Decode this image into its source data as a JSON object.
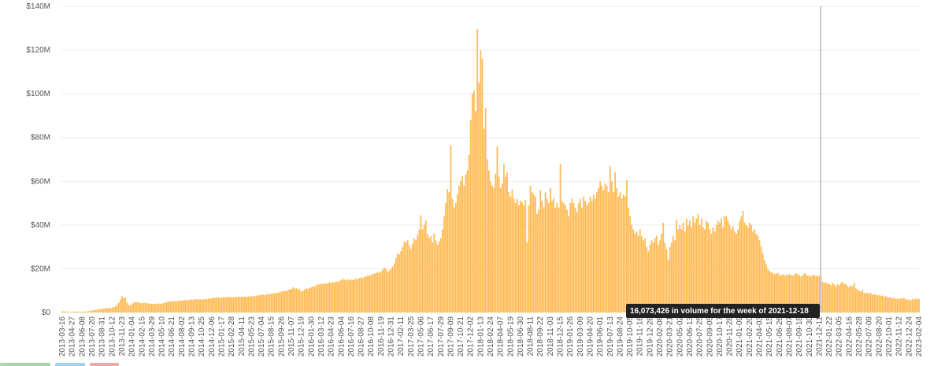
{
  "chart_data": {
    "type": "bar",
    "color": "#ffbb55",
    "ylim": [
      0,
      140
    ],
    "yticks": [
      {
        "value": 0,
        "label": "$0"
      },
      {
        "value": 20,
        "label": "$20M"
      },
      {
        "value": 40,
        "label": "$40M"
      },
      {
        "value": 60,
        "label": "$60M"
      },
      {
        "value": 80,
        "label": "$80M"
      },
      {
        "value": 100,
        "label": "$100M"
      },
      {
        "value": 120,
        "label": "$120M"
      },
      {
        "value": 140,
        "label": "$140M"
      }
    ],
    "grid": true,
    "annotation": "16,073,426 in volume for the week of 2021-12-18",
    "categories": [
      "2013-03-16",
      null,
      null,
      null,
      null,
      null,
      "2013-04-27",
      null,
      null,
      null,
      null,
      null,
      "2013-06-08",
      null,
      null,
      null,
      null,
      null,
      "2013-07-20",
      null,
      null,
      null,
      null,
      null,
      "2013-08-31",
      null,
      null,
      null,
      null,
      null,
      "2013-10-12",
      null,
      null,
      null,
      null,
      null,
      "2013-11-23",
      null,
      null,
      null,
      null,
      null,
      "2014-01-04",
      null,
      null,
      null,
      null,
      null,
      "2014-02-15",
      null,
      null,
      null,
      null,
      null,
      "2014-03-29",
      null,
      null,
      null,
      null,
      null,
      "2014-05-10",
      null,
      null,
      null,
      null,
      null,
      "2014-06-21",
      null,
      null,
      null,
      null,
      null,
      "2014-08-02",
      null,
      null,
      null,
      null,
      null,
      "2014-09-13",
      null,
      null,
      null,
      null,
      null,
      "2014-10-25",
      null,
      null,
      null,
      null,
      null,
      "2014-12-06",
      null,
      null,
      null,
      null,
      null,
      "2015-01-17",
      null,
      null,
      null,
      null,
      null,
      "2015-02-28",
      null,
      null,
      null,
      null,
      null,
      "2015-04-11",
      null,
      null,
      null,
      null,
      null,
      "2015-05-23",
      null,
      null,
      null,
      null,
      null,
      "2015-07-04",
      null,
      null,
      null,
      null,
      null,
      "2015-08-15",
      null,
      null,
      null,
      null,
      null,
      "2015-09-26",
      null,
      null,
      null,
      null,
      null,
      "2015-11-07",
      null,
      null,
      null,
      null,
      null,
      "2015-12-19",
      null,
      null,
      null,
      null,
      null,
      "2016-01-30",
      null,
      null,
      null,
      null,
      null,
      "2016-03-12",
      null,
      null,
      null,
      null,
      null,
      "2016-04-23",
      null,
      null,
      null,
      null,
      null,
      "2016-06-04",
      null,
      null,
      null,
      null,
      null,
      "2016-07-16",
      null,
      null,
      null,
      null,
      null,
      "2016-08-27",
      null,
      null,
      null,
      null,
      null,
      "2016-10-08",
      null,
      null,
      null,
      null,
      null,
      "2016-11-19",
      null,
      null,
      null,
      null,
      null,
      "2016-12-31",
      null,
      null,
      null,
      null,
      null,
      "2017-02-11",
      null,
      null,
      null,
      null,
      null,
      "2017-03-25",
      null,
      null,
      null,
      null,
      null,
      "2017-05-06",
      null,
      null,
      null,
      null,
      null,
      "2017-06-17",
      null,
      null,
      null,
      null,
      null,
      "2017-07-29",
      null,
      null,
      null,
      null,
      null,
      "2017-09-09",
      null,
      null,
      null,
      null,
      null,
      "2017-10-21",
      null,
      null,
      null,
      null,
      null,
      "2017-12-02",
      null,
      null,
      null,
      null,
      null,
      "2018-01-13",
      null,
      null,
      null,
      null,
      null,
      "2018-02-24",
      null,
      null,
      null,
      null,
      null,
      "2018-04-07",
      null,
      null,
      null,
      null,
      null,
      "2018-05-19",
      null,
      null,
      null,
      null,
      null,
      "2018-06-30",
      null,
      null,
      null,
      null,
      null,
      "2018-08-11",
      null,
      null,
      null,
      null,
      null,
      "2018-09-22",
      null,
      null,
      null,
      null,
      null,
      "2018-11-03",
      null,
      null,
      null,
      null,
      null,
      "2018-12-15",
      null,
      null,
      null,
      null,
      null,
      "2019-01-26",
      null,
      null,
      null,
      null,
      null,
      "2019-03-09",
      null,
      null,
      null,
      null,
      null,
      "2019-04-20",
      null,
      null,
      null,
      null,
      null,
      "2019-06-01",
      null,
      null,
      null,
      null,
      null,
      "2019-07-13",
      null,
      null,
      null,
      null,
      null,
      "2019-08-24",
      null,
      null,
      null,
      null,
      null,
      "2019-10-05",
      null,
      null,
      null,
      null,
      null,
      "2019-11-16",
      null,
      null,
      null,
      null,
      null,
      "2019-12-28",
      null,
      null,
      null,
      null,
      null,
      "2020-02-08",
      null,
      null,
      null,
      null,
      null,
      "2020-03-21",
      null,
      null,
      null,
      null,
      null,
      "2020-05-02",
      null,
      null,
      null,
      null,
      null,
      "2020-06-13",
      null,
      null,
      null,
      null,
      null,
      "2020-07-25",
      null,
      null,
      null,
      null,
      null,
      "2020-09-05",
      null,
      null,
      null,
      null,
      null,
      "2020-10-17",
      null,
      null,
      null,
      null,
      null,
      "2020-11-28",
      null,
      null,
      null,
      null,
      null,
      "2021-01-09",
      null,
      null,
      null,
      null,
      null,
      "2021-02-20",
      null,
      null,
      null,
      null,
      null,
      "2021-04-03",
      null,
      null,
      null,
      null,
      null,
      "2021-05-15",
      null,
      null,
      null,
      null,
      null,
      "2021-06-26",
      null,
      null,
      null,
      null,
      null,
      "2021-08-07",
      null,
      null,
      null,
      null,
      null,
      "2021-09-18",
      null,
      null,
      null,
      null,
      null,
      "2021-10-30",
      null,
      null,
      null,
      null,
      null,
      "2021-12-11",
      null,
      null,
      null,
      null,
      null,
      "2022-01-22",
      null,
      null,
      null,
      null,
      null,
      "2022-03-05",
      null,
      null,
      null,
      null,
      null,
      "2022-04-16",
      null,
      null,
      null,
      null,
      null,
      "2022-05-28",
      null,
      null,
      null,
      null,
      null,
      "2022-07-09",
      null,
      null,
      null,
      null,
      null,
      "2022-08-20",
      null,
      null,
      null,
      null,
      null,
      "2022-10-01",
      null,
      null,
      null,
      null,
      null,
      "2022-11-12",
      null,
      null,
      null,
      null,
      null,
      "2022-12-24",
      null,
      null,
      null,
      null,
      null,
      "2023-02-04"
    ],
    "values": [
      0.5,
      0.6,
      0.4,
      0.4,
      0.3,
      0.3,
      0.3,
      0.4,
      0.3,
      0.3,
      0.4,
      0.3,
      0.3,
      0.4,
      0.4,
      0.5,
      0.6,
      0.8,
      0.9,
      1.0,
      1.2,
      1.3,
      1.5,
      1.6,
      1.6,
      1.8,
      1.9,
      2.0,
      1.9,
      2.1,
      2.2,
      2.5,
      2.8,
      3.5,
      4.5,
      6.0,
      7.5,
      6.5,
      7.0,
      4.5,
      3.5,
      3.2,
      4.0,
      4.5,
      4.8,
      4.6,
      4.7,
      4.3,
      4.2,
      4.4,
      4.5,
      4.3,
      4.1,
      4.0,
      4.0,
      3.9,
      3.8,
      4.0,
      4.2,
      3.9,
      4.1,
      4.3,
      4.6,
      4.8,
      5.0,
      4.9,
      5.2,
      5.0,
      5.3,
      5.1,
      5.4,
      5.5,
      5.3,
      5.6,
      5.8,
      5.5,
      5.7,
      5.9,
      6.0,
      5.8,
      6.2,
      6.0,
      5.9,
      6.1,
      5.8,
      6.0,
      6.2,
      6.1,
      6.3,
      6.5,
      6.4,
      6.8,
      6.6,
      6.9,
      7.0,
      6.7,
      6.8,
      7.0,
      6.9,
      7.1,
      7.2,
      7.0,
      7.1,
      6.9,
      7.2,
      7.0,
      7.3,
      7.1,
      7.2,
      7.0,
      7.3,
      7.1,
      7.4,
      7.2,
      7.5,
      7.3,
      7.6,
      7.8,
      7.7,
      7.9,
      8.0,
      8.2,
      7.9,
      8.3,
      8.5,
      8.4,
      8.6,
      8.8,
      9.0,
      8.7,
      9.1,
      9.3,
      9.5,
      9.8,
      10.0,
      9.7,
      10.2,
      10.5,
      10.8,
      11.5,
      10.9,
      11.2,
      10.5,
      10.8,
      9.5,
      10.0,
      10.5,
      11.0,
      10.8,
      11.2,
      11.5,
      12.0,
      11.8,
      12.5,
      13.0,
      12.8,
      13.2,
      12.9,
      13.5,
      13.0,
      13.6,
      13.8,
      13.5,
      14.0,
      13.7,
      14.2,
      13.9,
      14.5,
      14.8,
      15.5,
      15.0,
      14.6,
      15.2,
      14.8,
      15.0,
      14.8,
      15.3,
      15.5,
      15.1,
      15.8,
      16.0,
      15.7,
      16.3,
      16.5,
      17.0,
      16.8,
      17.2,
      17.5,
      17.8,
      18.0,
      18.5,
      18.2,
      18.8,
      19.5,
      20.5,
      19.8,
      18.5,
      19.2,
      20.0,
      21.0,
      22.5,
      25.0,
      27.0,
      26.5,
      28.0,
      30.0,
      32.5,
      32.0,
      33.0,
      31.0,
      29.0,
      31.5,
      34.0,
      33.0,
      35.5,
      38.0,
      44.5,
      38.0,
      40.0,
      42.0,
      36.0,
      34.0,
      35.0,
      32.0,
      36.0,
      33.0,
      31.0,
      32.5,
      34.0,
      38.0,
      44.0,
      50.0,
      56.5,
      55.0,
      76.5,
      52.0,
      48.0,
      50.0,
      54.0,
      58.0,
      60.0,
      62.5,
      58.0,
      63.0,
      65.0,
      72.0,
      88.0,
      100.0,
      101.5,
      92.0,
      129.5,
      105.0,
      120.0,
      116.0,
      84.0,
      93.5,
      70.0,
      65.0,
      60.0,
      58.0,
      57.0,
      63.5,
      76.0,
      62.0,
      57.0,
      59.0,
      68.0,
      62.0,
      64.0,
      55.0,
      53.0,
      56.0,
      52.0,
      50.0,
      52.0,
      49.0,
      51.0,
      50.5,
      49.0,
      51.5,
      32.0,
      49.0,
      58.0,
      55.0,
      54.0,
      53.0,
      45.0,
      47.0,
      56.0,
      51.0,
      48.0,
      55.0,
      52.0,
      50.0,
      57.0,
      51.0,
      52.0,
      48.0,
      50.0,
      48.0,
      68.0,
      51.0,
      50.0,
      49.0,
      47.0,
      44.0,
      50.0,
      52.0,
      50.0,
      48.0,
      46.0,
      50.0,
      52.0,
      48.0,
      53.0,
      51.0,
      49.0,
      50.0,
      53.0,
      51.0,
      54.0,
      52.0,
      55.0,
      57.0,
      60.0,
      58.0,
      56.0,
      59.0,
      58.0,
      55.0,
      67.0,
      60.0,
      55.0,
      64.0,
      57.0,
      53.0,
      55.0,
      52.0,
      54.0,
      53.0,
      60.5,
      48.0,
      44.0,
      40.0,
      38.0,
      36.0,
      37.0,
      35.0,
      38.0,
      35.0,
      33.0,
      34.0,
      30.0,
      28.0,
      31.0,
      33.0,
      32.0,
      34.0,
      35.0,
      31.0,
      33.0,
      36.0,
      41.0,
      32.0,
      29.0,
      24.0,
      30.0,
      32.0,
      35.0,
      33.0,
      42.5,
      38.0,
      40.0,
      38.0,
      41.0,
      37.0,
      43.0,
      40.0,
      42.0,
      39.0,
      44.0,
      41.0,
      43.0,
      45.0,
      40.0,
      43.0,
      39.0,
      38.0,
      42.0,
      41.0,
      38.0,
      36.0,
      39.0,
      37.0,
      40.0,
      42.0,
      41.0,
      43.0,
      39.0,
      44.0,
      44.0,
      42.0,
      40.0,
      38.0,
      39.5,
      37.0,
      36.0,
      38.0,
      42.0,
      44.0,
      46.5,
      41.0,
      40.0,
      39.0,
      41.0,
      40.0,
      37.0,
      38.0,
      36.0,
      35.0,
      33.0,
      30.0,
      27.0,
      24.0,
      22.0,
      20.0,
      19.0,
      18.5,
      18.0,
      17.5,
      17.8,
      18.0,
      17.2,
      17.0,
      17.5,
      16.8,
      17.3,
      17.0,
      17.5,
      17.0,
      16.8,
      17.2,
      18.0,
      17.5,
      17.0,
      16.5,
      17.0,
      18.0,
      17.5,
      16.8,
      17.0,
      16.5,
      17.2,
      16.8,
      17.0,
      16.5,
      16.8,
      16.07,
      14.0,
      13.5,
      13.8,
      13.2,
      13.0,
      12.5,
      13.5,
      12.8,
      12.0,
      13.0,
      12.5,
      13.5,
      14.0,
      12.8,
      13.2,
      12.0,
      11.5,
      12.5,
      11.8,
      13.5,
      11.0,
      10.5,
      10.0,
      9.5,
      10.2,
      9.0,
      8.8,
      9.2,
      8.5,
      9.0,
      8.0,
      8.5,
      8.2,
      7.8,
      8.0,
      7.5,
      7.8,
      7.2,
      7.5,
      7.0,
      6.8,
      7.0,
      6.5,
      6.8,
      6.2,
      6.5,
      6.0,
      6.5,
      6.3,
      6.8,
      6.0,
      5.8,
      6.0,
      5.5,
      6.2,
      5.8,
      6.5,
      6.0,
      6.2
    ]
  }
}
